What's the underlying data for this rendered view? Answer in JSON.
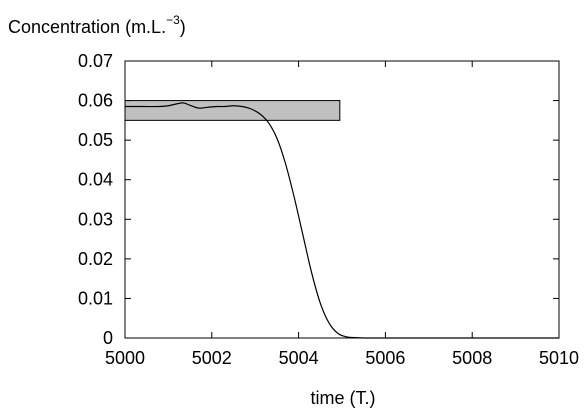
{
  "chart_data": {
    "type": "line",
    "title": "",
    "ylabel_main": "Concentration (m.L.",
    "ylabel_sup": "−3",
    "ylabel_close": ")",
    "xlabel": "time (T.)",
    "xlim": [
      5000,
      5010
    ],
    "ylim": [
      0,
      0.07
    ],
    "xticks": [
      5000,
      5002,
      5004,
      5006,
      5008,
      5010
    ],
    "yticks": [
      0,
      0.01,
      0.02,
      0.03,
      0.04,
      0.05,
      0.06,
      0.07
    ],
    "ytick_labels": [
      "0",
      "0.01",
      "0.02",
      "0.03",
      "0.04",
      "0.05",
      "0.06",
      "0.07"
    ],
    "band": {
      "x_start": 5000,
      "x_end": 5004.95,
      "y_low": 0.055,
      "y_high": 0.06
    },
    "grid": false,
    "colors": {
      "line": "#000000",
      "band_fill": "#c0c0c0",
      "band_stroke": "#000000",
      "axes": "#000000"
    },
    "series": [
      {
        "x": [
          5000,
          5000.4,
          5000.8,
          5001.0,
          5001.2,
          5001.35,
          5001.5,
          5001.7,
          5001.9,
          5002.1,
          5002.3,
          5002.5,
          5002.7,
          5002.9,
          5003.1,
          5003.3,
          5003.5,
          5003.7,
          5003.9,
          5004.1,
          5004.3,
          5004.5,
          5004.7,
          5004.9,
          5005.1,
          5005.3,
          5005.6,
          5006,
          5007,
          5008,
          5009,
          5010
        ],
        "y": [
          0.0585,
          0.0585,
          0.0585,
          0.0587,
          0.0592,
          0.0594,
          0.0588,
          0.0581,
          0.0583,
          0.0585,
          0.0585,
          0.0587,
          0.0585,
          0.0579,
          0.0567,
          0.0545,
          0.0505,
          0.044,
          0.0355,
          0.026,
          0.0165,
          0.0088,
          0.0038,
          0.0012,
          0.0003,
          0.0001,
          0,
          0,
          0,
          0,
          0,
          0
        ]
      }
    ]
  }
}
